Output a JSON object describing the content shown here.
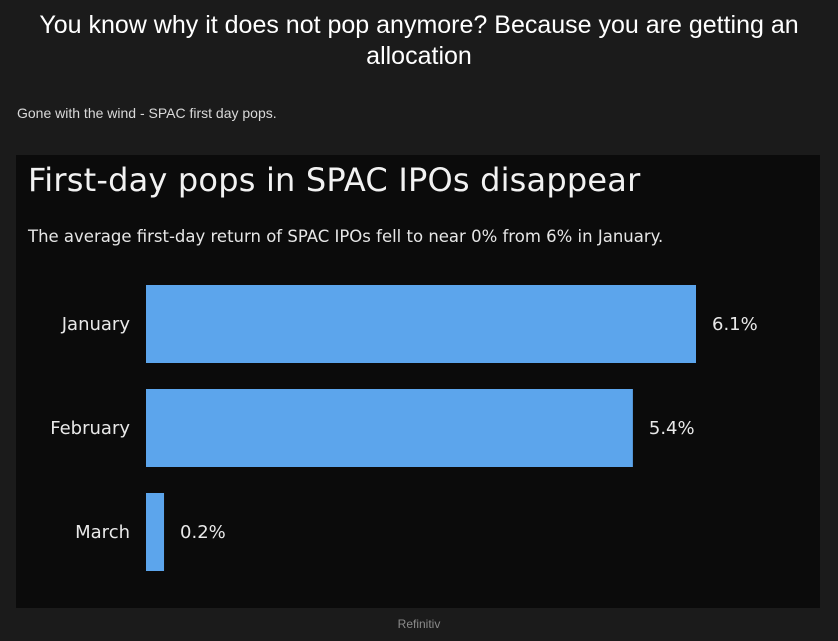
{
  "post": {
    "title": "You know why it does not pop anymore? Because you are getting an allocation",
    "subtitle": "Gone with the wind - SPAC first day pops.",
    "source": "Refinitiv"
  },
  "chart_data": {
    "type": "bar",
    "orientation": "horizontal",
    "title": "First-day pops in SPAC IPOs disappear",
    "subtitle": "The average first-day return of SPAC IPOs fell to near 0% from 6% in January.",
    "categories": [
      "January",
      "February",
      "March"
    ],
    "values": [
      6.1,
      5.4,
      0.2
    ],
    "value_labels": [
      "6.1%",
      "5.4%",
      "0.2%"
    ],
    "xlabel": "",
    "ylabel": "",
    "xlim": [
      0,
      6.1
    ],
    "grid": false,
    "bar_color": "#5ca5ec",
    "background_color": "#0b0b0b"
  }
}
